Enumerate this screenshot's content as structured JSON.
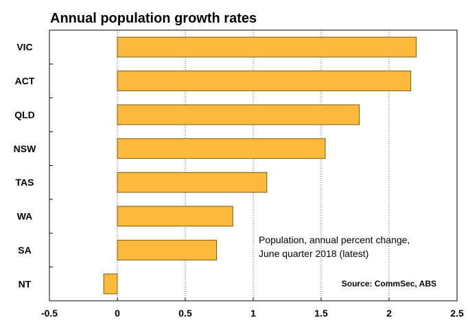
{
  "chart_data": {
    "type": "bar",
    "orientation": "horizontal",
    "title": "Annual population growth rates",
    "categories": [
      "VIC",
      "ACT",
      "QLD",
      "NSW",
      "TAS",
      "WA",
      "SA",
      "NT"
    ],
    "values": [
      2.2,
      2.16,
      1.78,
      1.53,
      1.1,
      0.85,
      0.73,
      -0.1
    ],
    "xlim": [
      -0.5,
      2.5
    ],
    "xticks": [
      "-0.5",
      "0",
      "0.5",
      "1",
      "1.5",
      "2",
      "2.5"
    ],
    "xtick_values": [
      -0.5,
      0,
      0.5,
      1,
      1.5,
      2,
      2.5
    ],
    "grid": "vertical dotted",
    "bar_color": "#FBBA3B",
    "bar_edge_color": "#7a5a10",
    "annotation": [
      "Population, annual percent change,",
      "June quarter 2018 (latest)"
    ],
    "source": "Source: CommSec, ABS"
  }
}
